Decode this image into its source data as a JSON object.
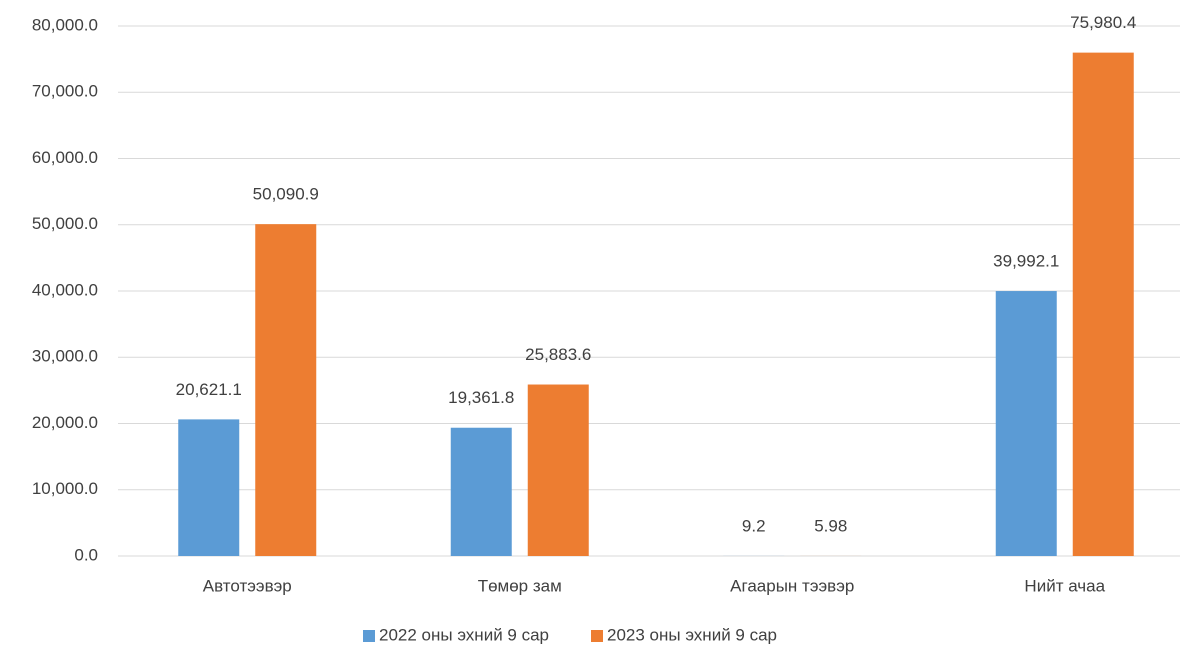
{
  "chart_data": {
    "type": "bar",
    "categories": [
      "Автотээвэр",
      "Төмөр зам",
      "Агаарын тээвэр",
      "Нийт ачаа"
    ],
    "series": [
      {
        "name": "2022 оны эхний 9 сар",
        "color": "#5b9bd5",
        "values": [
          20621.1,
          19361.8,
          9.2,
          39992.1
        ],
        "value_labels": [
          "20,621.1",
          "19,361.8",
          "9.2",
          "39,992.1"
        ]
      },
      {
        "name": "2023 оны эхний 9 сар",
        "color": "#ed7d31",
        "values": [
          50090.9,
          25883.6,
          5.98,
          75980.4
        ],
        "value_labels": [
          "50,090.9",
          "25,883.6",
          "5.98",
          "75,980.4"
        ]
      }
    ],
    "ylim": [
      0,
      80000
    ],
    "yticks": [
      {
        "value": 0,
        "label": "0.0"
      },
      {
        "value": 10000,
        "label": "10,000.0"
      },
      {
        "value": 20000,
        "label": "20,000.0"
      },
      {
        "value": 30000,
        "label": "30,000.0"
      },
      {
        "value": 40000,
        "label": "40,000.0"
      },
      {
        "value": 50000,
        "label": "50,000.0"
      },
      {
        "value": 60000,
        "label": "60,000.0"
      },
      {
        "value": 70000,
        "label": "70,000.0"
      },
      {
        "value": 80000,
        "label": "80,000.0"
      }
    ],
    "grid": true,
    "legend": "bottom"
  }
}
